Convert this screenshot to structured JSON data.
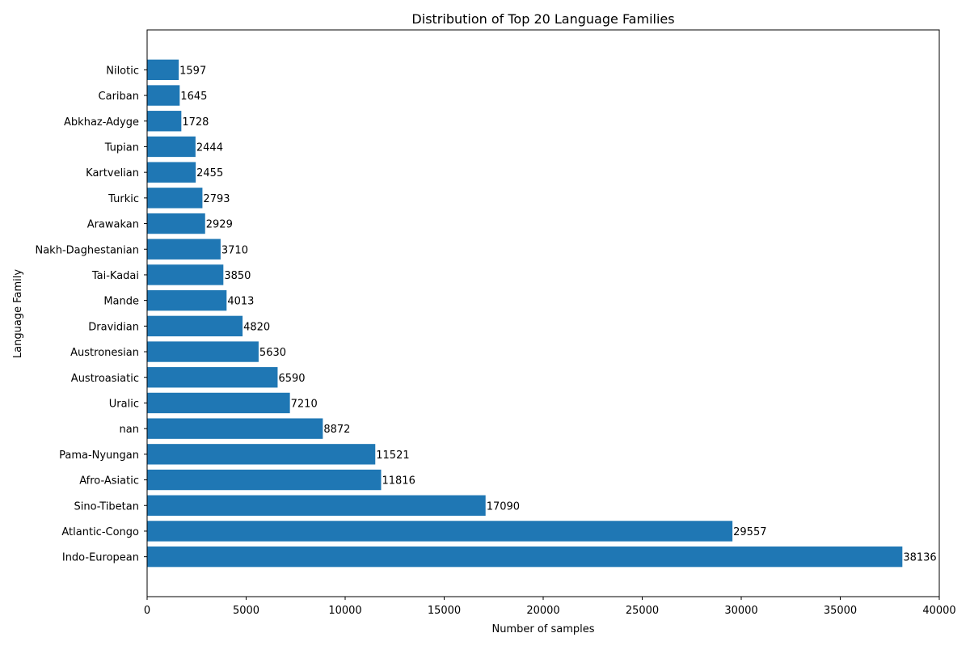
{
  "chart_data": {
    "type": "bar",
    "orientation": "horizontal",
    "title": "Distribution of Top 20 Language Families",
    "xlabel": "Number of samples",
    "ylabel": "Language Family",
    "xlim": [
      0,
      40000
    ],
    "xticks": [
      0,
      5000,
      10000,
      15000,
      20000,
      25000,
      30000,
      35000,
      40000
    ],
    "grid": false,
    "bar_color": "#1f77b4",
    "categories": [
      "Indo-European",
      "Atlantic-Congo",
      "Sino-Tibetan",
      "Afro-Asiatic",
      "Pama-Nyungan",
      "nan",
      "Uralic",
      "Austroasiatic",
      "Austronesian",
      "Dravidian",
      "Mande",
      "Tai-Kadai",
      "Nakh-Daghestanian",
      "Arawakan",
      "Turkic",
      "Kartvelian",
      "Tupian",
      "Abkhaz-Adyge",
      "Cariban",
      "Nilotic"
    ],
    "values": [
      38136,
      29557,
      17090,
      11816,
      11521,
      8872,
      7210,
      6590,
      5630,
      4820,
      4013,
      3850,
      3710,
      2929,
      2793,
      2455,
      2444,
      1728,
      1645,
      1597
    ]
  }
}
